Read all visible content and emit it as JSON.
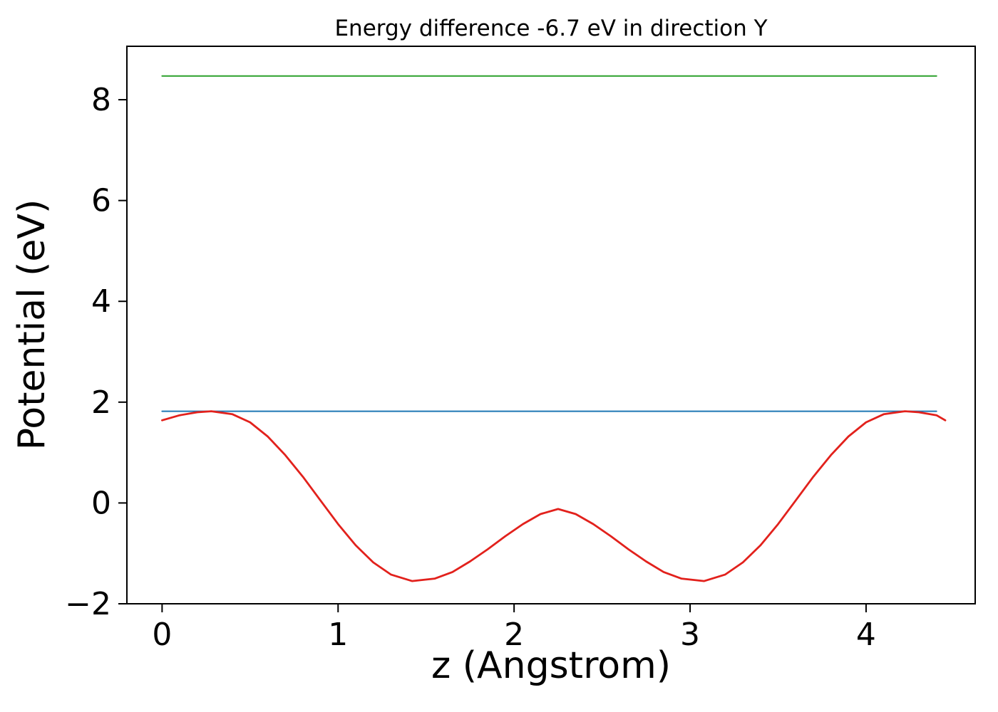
{
  "figure": {
    "background": "#ffffff",
    "spine_color": "#000000"
  },
  "chart_data": {
    "type": "line",
    "title": "Energy difference -6.7 eV in direction Y",
    "xlabel": "z (Angstrom)",
    "ylabel": "Potential (eV)",
    "xlim": [
      -0.2,
      4.62
    ],
    "ylim": [
      -2,
      9.06
    ],
    "x_ticks": [
      0,
      1,
      2,
      3,
      4
    ],
    "x_tick_labels": [
      "0",
      "1",
      "2",
      "3",
      "4"
    ],
    "y_ticks": [
      -2,
      0,
      2,
      4,
      6,
      8
    ],
    "y_tick_labels": [
      "−2",
      "0",
      "2",
      "4",
      "6",
      "8"
    ],
    "grid": false,
    "legend": null,
    "series": [
      {
        "name": "green-hline",
        "color": "#2ca02c",
        "line_width": 2,
        "x": [
          0.0,
          4.4
        ],
        "y": [
          8.47,
          8.47
        ]
      },
      {
        "name": "blue-hline",
        "color": "#1f77b4",
        "line_width": 2,
        "x": [
          0.0,
          4.4
        ],
        "y": [
          1.82,
          1.82
        ]
      },
      {
        "name": "red-curve",
        "color": "#e2211c",
        "line_width": 2.8,
        "x": [
          0.0,
          0.1,
          0.2,
          0.28,
          0.4,
          0.5,
          0.6,
          0.7,
          0.8,
          0.9,
          1.0,
          1.1,
          1.2,
          1.3,
          1.42,
          1.55,
          1.65,
          1.75,
          1.85,
          1.95,
          2.05,
          2.15,
          2.25,
          2.35,
          2.45,
          2.55,
          2.65,
          2.75,
          2.85,
          2.95,
          3.08,
          3.2,
          3.3,
          3.4,
          3.5,
          3.6,
          3.7,
          3.8,
          3.9,
          4.0,
          4.1,
          4.22,
          4.3,
          4.4,
          4.45
        ],
        "y": [
          1.64,
          1.74,
          1.8,
          1.82,
          1.76,
          1.6,
          1.32,
          0.95,
          0.52,
          0.05,
          -0.42,
          -0.84,
          -1.18,
          -1.42,
          -1.55,
          -1.5,
          -1.37,
          -1.16,
          -0.92,
          -0.66,
          -0.42,
          -0.22,
          -0.12,
          -0.22,
          -0.42,
          -0.66,
          -0.92,
          -1.16,
          -1.37,
          -1.5,
          -1.55,
          -1.42,
          -1.18,
          -0.84,
          -0.42,
          0.05,
          0.52,
          0.95,
          1.32,
          1.6,
          1.76,
          1.82,
          1.8,
          1.74,
          1.64
        ]
      }
    ]
  }
}
